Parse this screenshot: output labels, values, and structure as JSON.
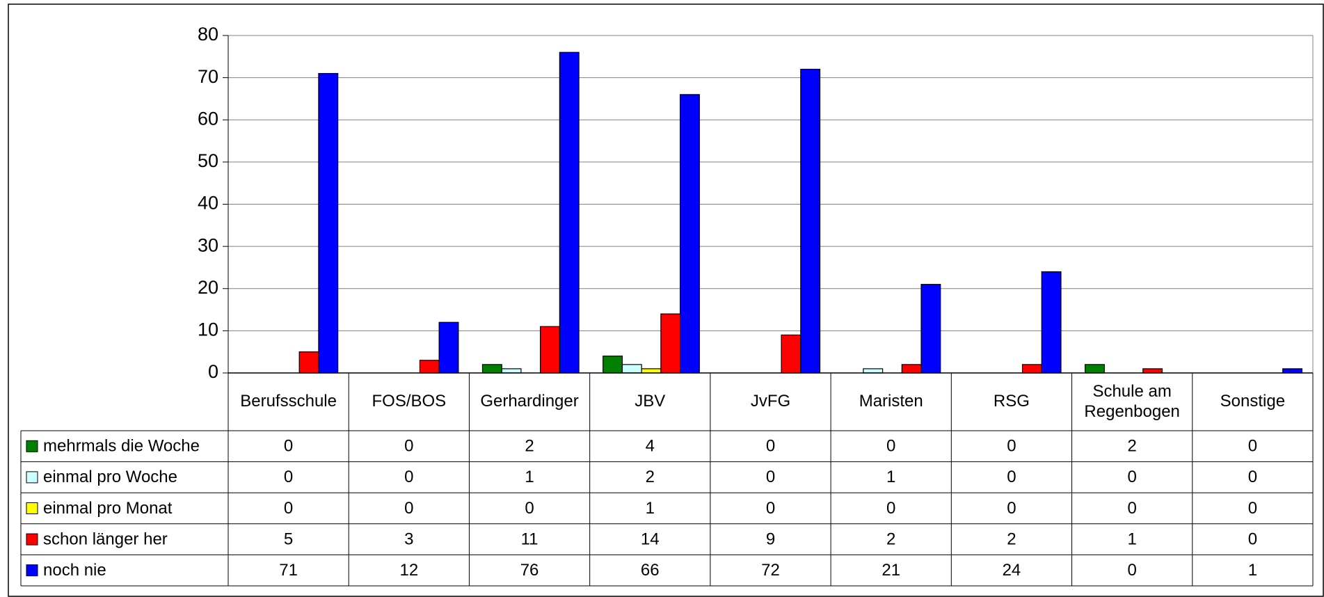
{
  "chart_data": {
    "type": "bar",
    "categories": [
      "Berufsschule",
      "FOS/BOS",
      "Gerhardinger",
      "JBV",
      "JvFG",
      "Maristen",
      "RSG",
      "Schule am Regenbogen",
      "Sonstige"
    ],
    "series": [
      {
        "name": "mehrmals die Woche",
        "color": "#008000",
        "values": [
          0,
          0,
          2,
          4,
          0,
          0,
          0,
          2,
          0
        ]
      },
      {
        "name": "einmal pro Woche",
        "color": "#ccffff",
        "values": [
          0,
          0,
          1,
          2,
          0,
          1,
          0,
          0,
          0
        ]
      },
      {
        "name": "einmal pro Monat",
        "color": "#ffff00",
        "values": [
          0,
          0,
          0,
          1,
          0,
          0,
          0,
          0,
          0
        ]
      },
      {
        "name": "schon länger her",
        "color": "#ff0000",
        "values": [
          5,
          3,
          11,
          14,
          9,
          2,
          2,
          1,
          0
        ]
      },
      {
        "name": "noch nie",
        "color": "#0000ff",
        "values": [
          71,
          12,
          76,
          66,
          72,
          21,
          24,
          0,
          1
        ]
      }
    ],
    "ylim": [
      0,
      80
    ],
    "yticks": [
      0,
      10,
      20,
      30,
      40,
      50,
      60,
      70,
      80
    ],
    "grid": true
  }
}
